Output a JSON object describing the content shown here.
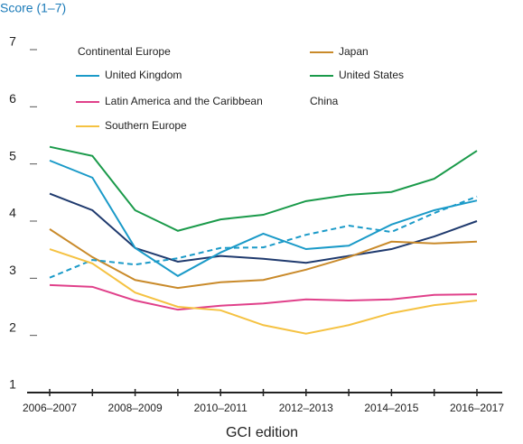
{
  "chart_data": {
    "type": "line",
    "title": "Score (1–7)",
    "x_label": "GCI edition",
    "categories": [
      "2006–2007",
      null,
      "2008–2009",
      null,
      "2010–2011",
      null,
      "2012–2013",
      null,
      "2014–2015",
      null,
      "2016–2017"
    ],
    "ylim": [
      1,
      7
    ],
    "yticks": [
      1,
      2,
      3,
      4,
      5,
      6,
      7
    ],
    "series": [
      {
        "name": "Continental Europe",
        "color": "#1f3a6e",
        "values": [
          4.48,
          4.19,
          3.53,
          3.29,
          3.39,
          3.34,
          3.27,
          3.39,
          3.51,
          3.73,
          4.0
        ]
      },
      {
        "name": "Japan",
        "color": "#c98a2a",
        "values": [
          3.86,
          3.37,
          2.97,
          2.83,
          2.93,
          2.97,
          3.15,
          3.37,
          3.64,
          3.61,
          3.64
        ]
      },
      {
        "name": "United Kingdom",
        "color": "#1a9ac8",
        "values": [
          5.06,
          4.76,
          3.53,
          3.04,
          3.45,
          3.78,
          3.51,
          3.57,
          3.94,
          4.19,
          4.36
        ]
      },
      {
        "name": "United States",
        "color": "#1a9a4a",
        "values": [
          5.3,
          5.14,
          4.19,
          3.83,
          4.03,
          4.11,
          4.35,
          4.46,
          4.51,
          4.74,
          5.23
        ]
      },
      {
        "name": "Latin America and the Caribbean",
        "color": "#e0408a",
        "values": [
          2.88,
          2.85,
          2.61,
          2.45,
          2.52,
          2.56,
          2.63,
          2.61,
          2.63,
          2.71,
          2.72
        ]
      },
      {
        "name": "China",
        "color": "#1a9ac8",
        "dashed": true,
        "values": [
          3.01,
          3.32,
          3.24,
          3.35,
          3.53,
          3.54,
          3.76,
          3.92,
          3.81,
          4.14,
          4.43
        ]
      },
      {
        "name": "Southern Europe",
        "color": "#f5c242",
        "values": [
          3.51,
          3.26,
          2.75,
          2.5,
          2.44,
          2.18,
          2.03,
          2.18,
          2.39,
          2.53,
          2.61
        ]
      }
    ]
  }
}
